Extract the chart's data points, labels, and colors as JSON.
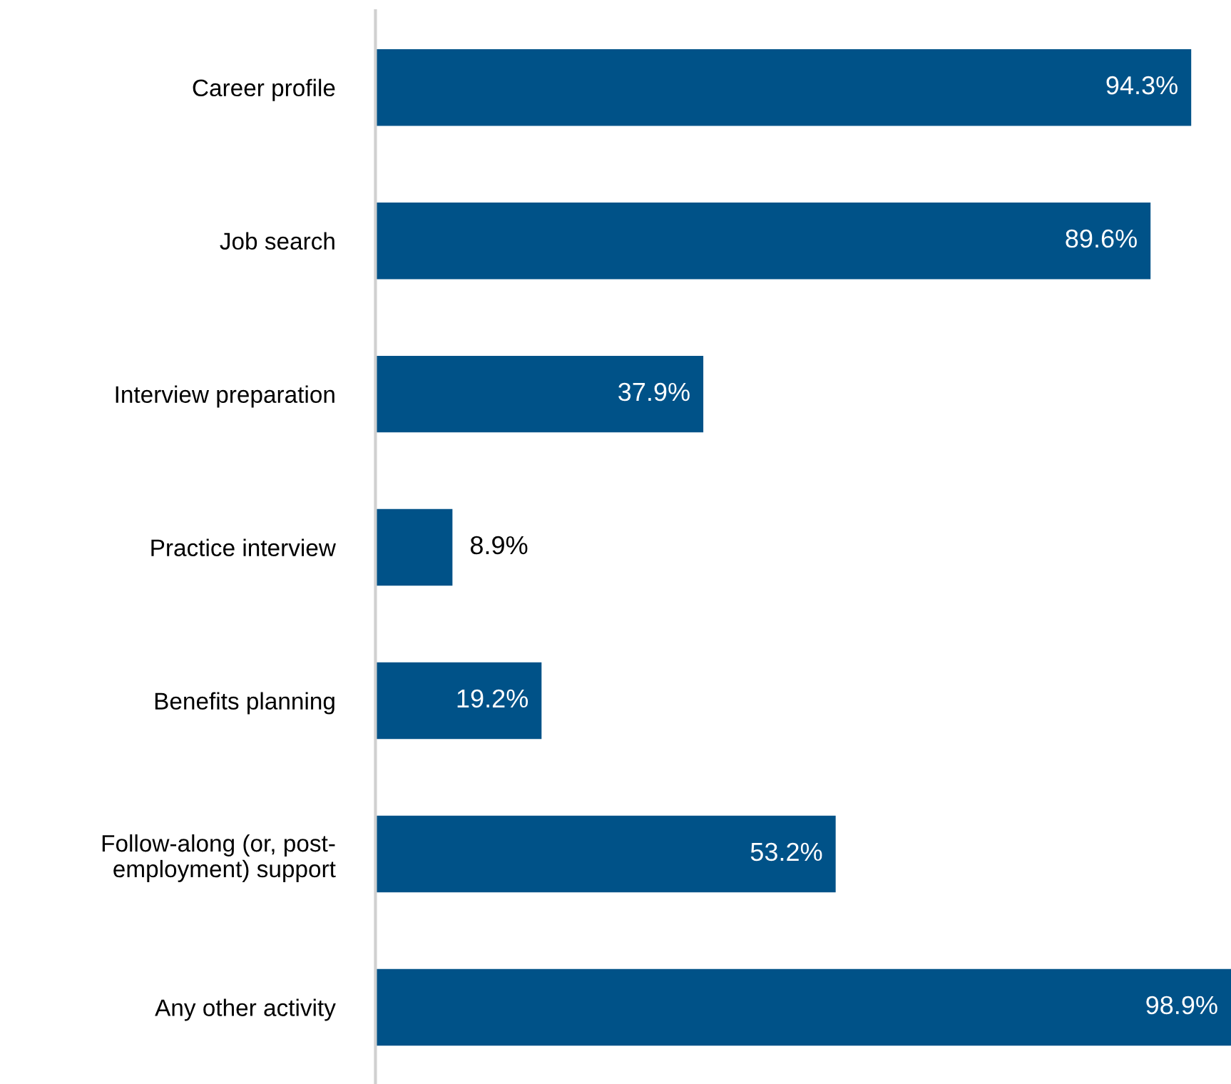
{
  "chart_data": {
    "type": "bar",
    "orientation": "horizontal",
    "categories": [
      "Career profile",
      "Job search",
      "Interview preparation",
      "Practice interview",
      "Benefits planning",
      "Follow-along (or, post-\nemployment) support",
      "Any other activity"
    ],
    "values": [
      94.3,
      89.6,
      37.9,
      8.9,
      19.2,
      53.2,
      98.9
    ],
    "value_labels": [
      "94.3%",
      "89.6%",
      "37.9%",
      "8.9%",
      "19.2%",
      "53.2%",
      "98.9%"
    ],
    "color": "#005288",
    "xlim": [
      0,
      98.9
    ],
    "tick_labels": "y",
    "grid": false,
    "legend": false
  }
}
